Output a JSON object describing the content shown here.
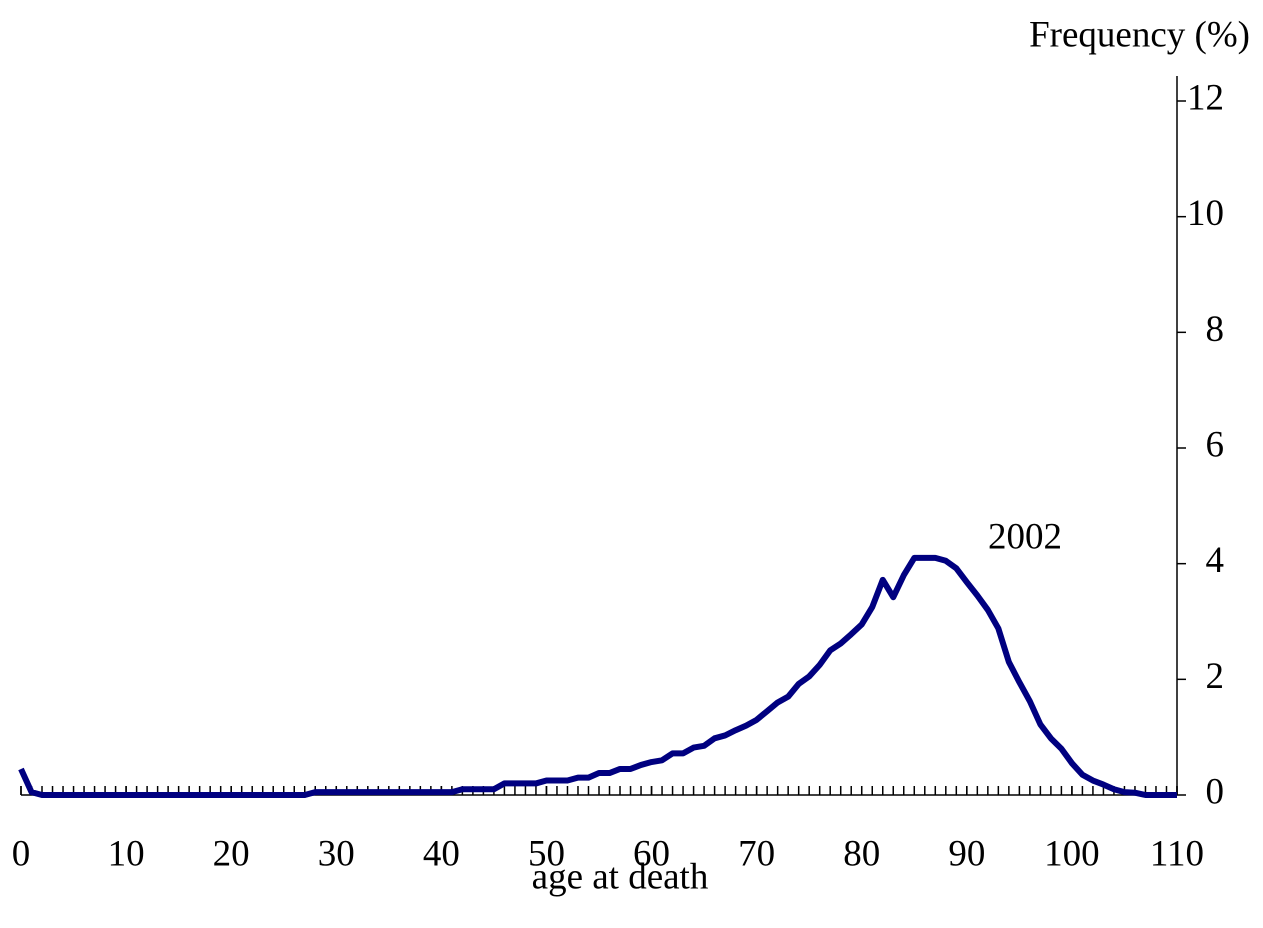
{
  "chart_data": {
    "type": "line",
    "y_label": "Frequency (%)",
    "x_label": "age at death",
    "annotation": "2002",
    "x": [
      0,
      1,
      2,
      3,
      4,
      5,
      6,
      7,
      8,
      9,
      10,
      11,
      12,
      13,
      14,
      15,
      16,
      17,
      18,
      19,
      20,
      21,
      22,
      23,
      24,
      25,
      26,
      27,
      28,
      29,
      30,
      31,
      32,
      33,
      34,
      35,
      36,
      37,
      38,
      39,
      40,
      41,
      42,
      43,
      44,
      45,
      46,
      47,
      48,
      49,
      50,
      51,
      52,
      53,
      54,
      55,
      56,
      57,
      58,
      59,
      60,
      61,
      62,
      63,
      64,
      65,
      66,
      67,
      68,
      69,
      70,
      71,
      72,
      73,
      74,
      75,
      76,
      77,
      78,
      79,
      80,
      81,
      82,
      83,
      84,
      85,
      86,
      87,
      88,
      89,
      90,
      91,
      92,
      93,
      94,
      95,
      96,
      97,
      98,
      99,
      100,
      101,
      102,
      103,
      104,
      105,
      106,
      107,
      108,
      109,
      110
    ],
    "series": [
      {
        "name": "2002",
        "color": "#000080",
        "values": [
          0.45,
          0.05,
          0,
          0,
          0,
          0,
          0,
          0,
          0,
          0,
          0,
          0,
          0,
          0,
          0,
          0,
          0,
          0,
          0,
          0,
          0,
          0,
          0,
          0,
          0,
          0,
          0,
          0,
          0.05,
          0.05,
          0.05,
          0.05,
          0.05,
          0.05,
          0.05,
          0.05,
          0.05,
          0.05,
          0.05,
          0.05,
          0.05,
          0.05,
          0.1,
          0.1,
          0.1,
          0.1,
          0.2,
          0.2,
          0.2,
          0.2,
          0.25,
          0.25,
          0.25,
          0.3,
          0.3,
          0.38,
          0.38,
          0.45,
          0.45,
          0.52,
          0.57,
          0.6,
          0.72,
          0.72,
          0.82,
          0.85,
          0.98,
          1.03,
          1.12,
          1.2,
          1.3,
          1.45,
          1.6,
          1.7,
          1.92,
          2.05,
          2.25,
          2.5,
          2.62,
          2.78,
          2.95,
          3.25,
          3.72,
          3.42,
          3.8,
          4.1,
          4.1,
          4.1,
          4.05,
          3.92,
          3.68,
          3.45,
          3.2,
          2.88,
          2.3,
          1.95,
          1.62,
          1.22,
          0.98,
          0.8,
          0.55,
          0.35,
          0.25,
          0.18,
          0.1,
          0.05,
          0.04,
          0,
          0,
          0,
          0
        ]
      }
    ],
    "xlim": [
      0,
      110
    ],
    "xticks": [
      0,
      10,
      20,
      30,
      40,
      50,
      60,
      70,
      80,
      90,
      100,
      110
    ],
    "ylim": [
      0,
      12
    ],
    "yticks": [
      0,
      2,
      4,
      6,
      8,
      10,
      12
    ]
  }
}
